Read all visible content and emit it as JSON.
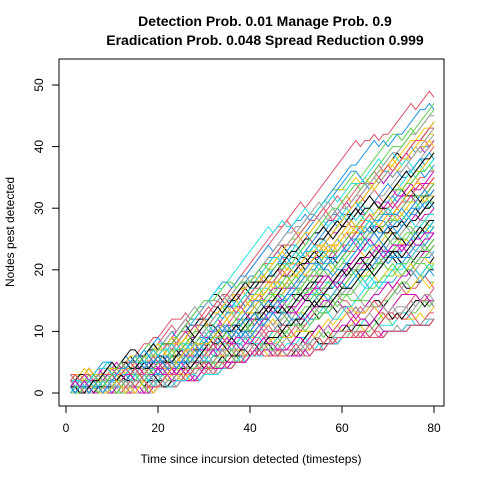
{
  "chart_data": {
    "type": "line",
    "title_line1": "Detection Prob. 0.01 Manage Prob. 0.9",
    "title_line2": "Eradication Prob. 0.048 Spread Reduction 0.999",
    "xlabel": "Time since incursion detected (timesteps)",
    "ylabel": "Nodes pest detected",
    "xlim": [
      0,
      80
    ],
    "ylim": [
      0,
      50
    ],
    "xticks": [
      0,
      20,
      40,
      60,
      80
    ],
    "yticks": [
      0,
      10,
      20,
      30,
      40,
      50
    ],
    "grid": false,
    "legend": "none",
    "n_series": 100,
    "x_start": 1,
    "x_end": 80,
    "palette": [
      "#000000",
      "#DF536B",
      "#61D04F",
      "#2297E6",
      "#28E2E5",
      "#CD0BBC",
      "#F5C710",
      "#9E9E9E"
    ],
    "envelope": {
      "x": [
        0,
        10,
        20,
        30,
        40,
        50,
        60,
        70,
        80
      ],
      "median": [
        0,
        2,
        5,
        9,
        14,
        19,
        24,
        28,
        32
      ],
      "min": [
        0,
        0,
        1,
        3,
        6,
        6,
        9,
        10,
        12
      ],
      "max": [
        2,
        7,
        11,
        16,
        24,
        33,
        40,
        50,
        52
      ]
    }
  }
}
